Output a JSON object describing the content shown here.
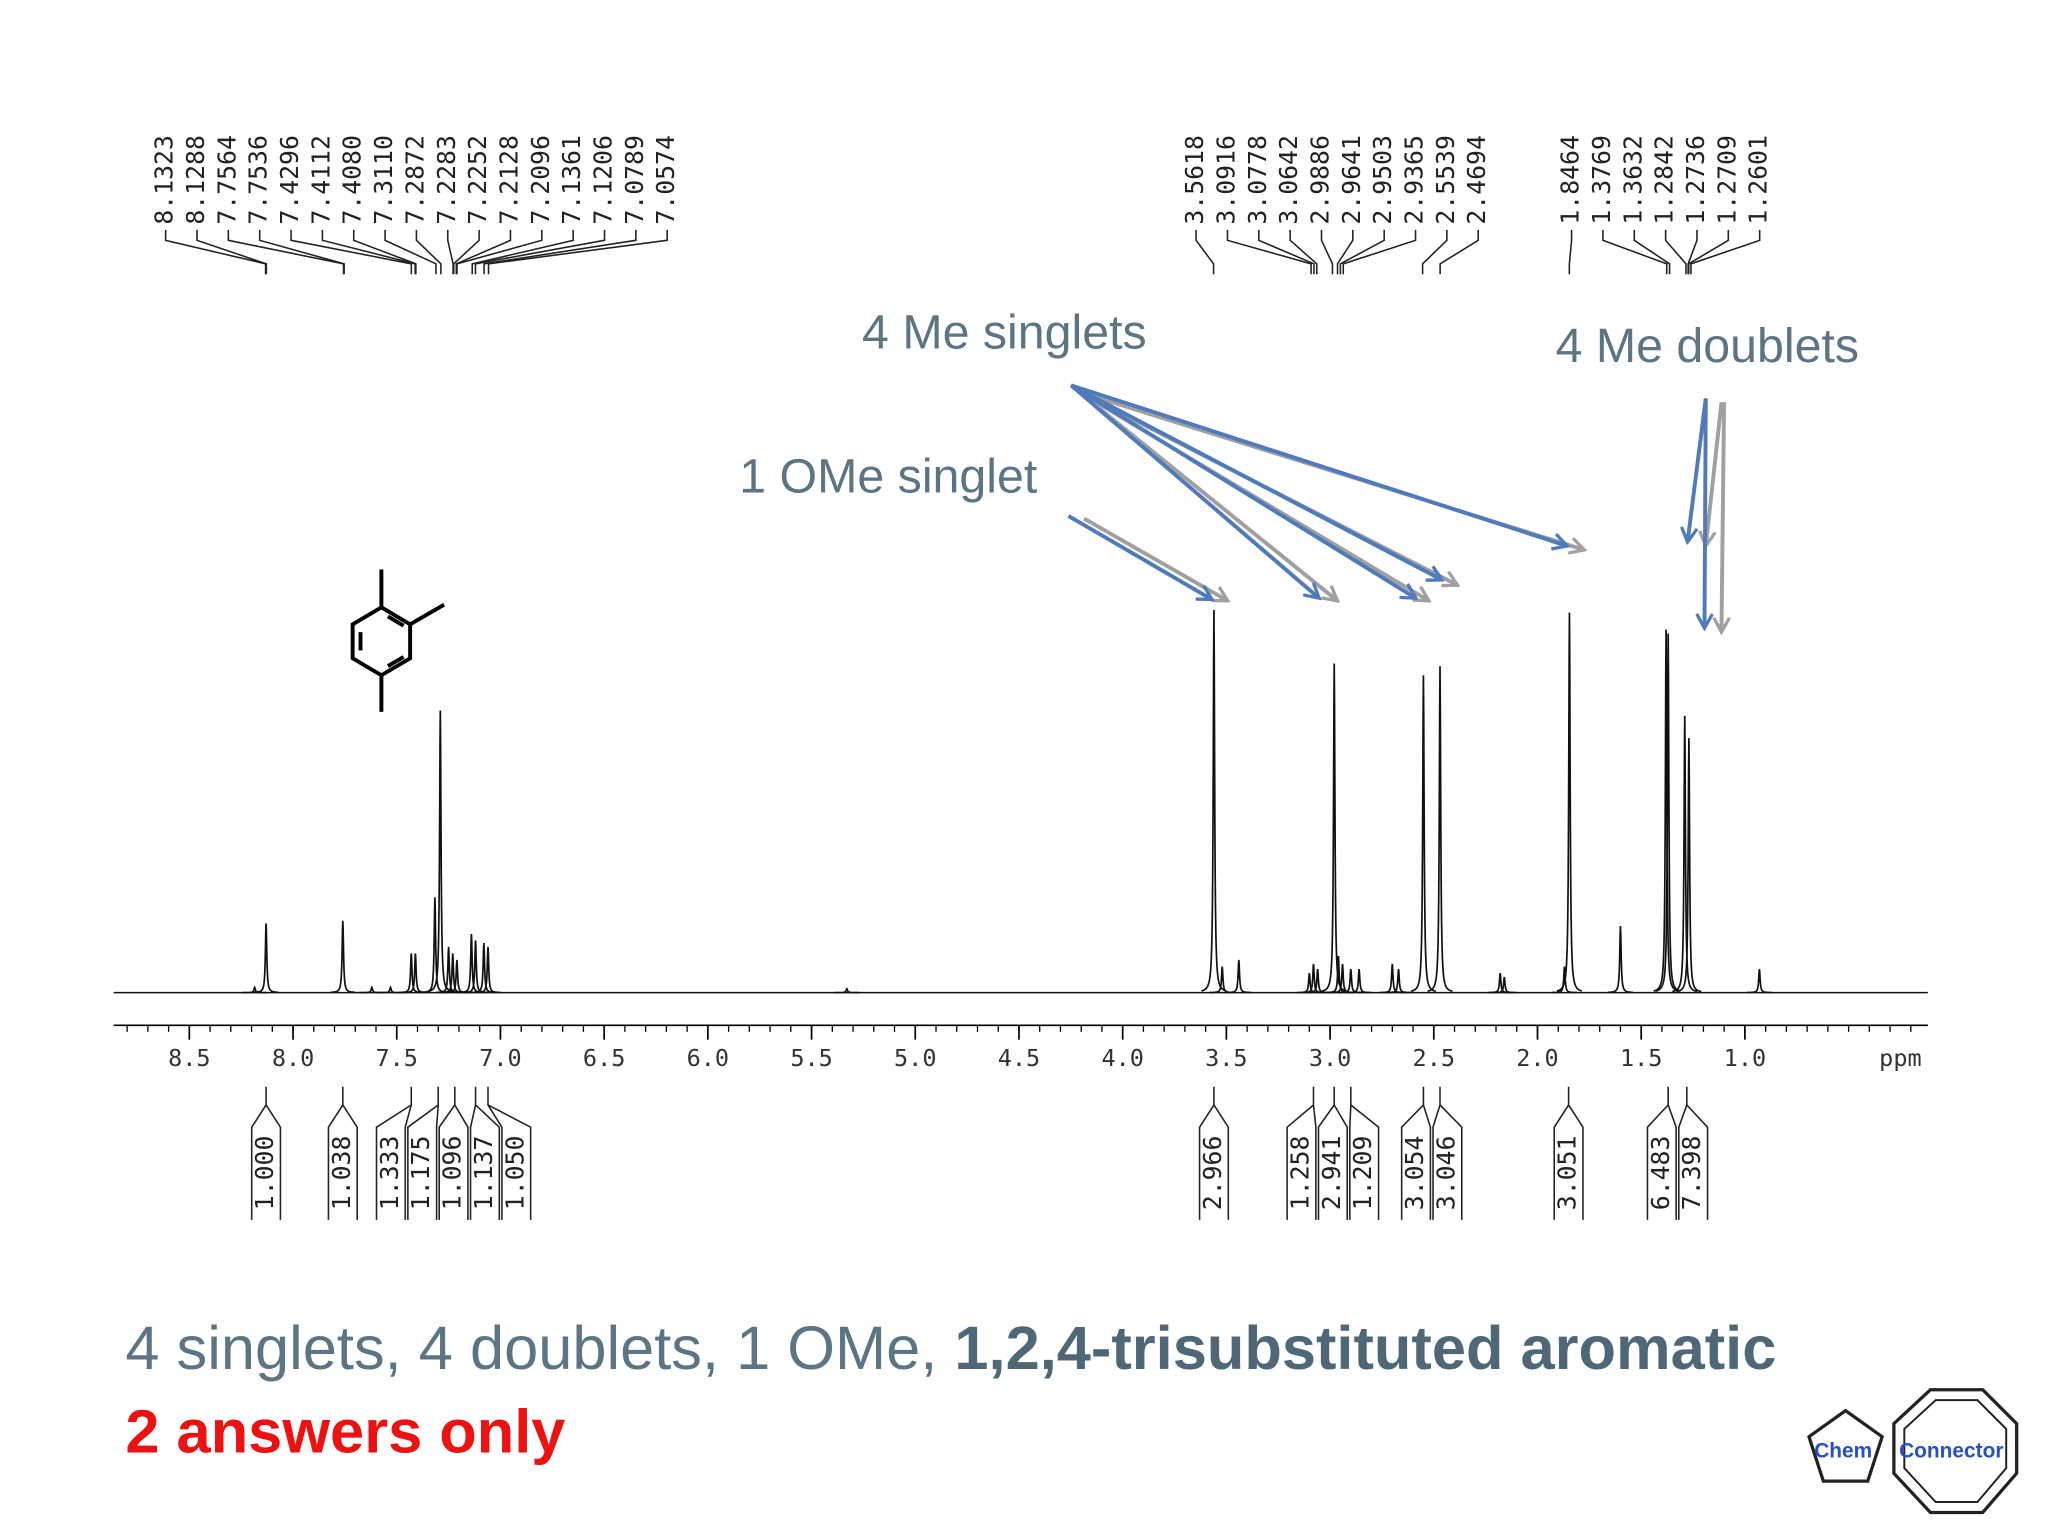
{
  "chart_data": {
    "type": "nmr",
    "xlim": [
      8.865,
      0.118
    ],
    "xticks": [
      8.5,
      {
        "value": 8,
        "label": "8.0"
      },
      7.5,
      {
        "value": 7,
        "label": "7.0"
      },
      6.5,
      {
        "value": 6,
        "label": "6.0"
      },
      5.5,
      {
        "value": 5,
        "label": "5.0"
      },
      4.5,
      {
        "value": 4,
        "label": "4.0"
      },
      3.5,
      {
        "value": 3,
        "label": "3.0"
      },
      2.5,
      {
        "value": 2,
        "label": "2.0"
      },
      1.5,
      {
        "value": 1,
        "label": "1.0"
      }
    ],
    "x_unit_label": "ppm",
    "peak_labels": [
      8.1323,
      8.1288,
      7.7564,
      7.7536,
      7.4296,
      7.4112,
      {
        "value": 7.408,
        "label": "7.4080"
      },
      {
        "value": 7.311,
        "label": "7.3110"
      },
      7.2872,
      7.2283,
      7.2252,
      7.2128,
      7.2096,
      7.1361,
      7.1206,
      7.0789,
      7.0574,
      3.5618,
      3.0916,
      3.0778,
      3.0642,
      2.9886,
      2.9641,
      2.9503,
      2.9365,
      2.5539,
      2.4694,
      1.8464,
      1.3769,
      1.3632,
      1.2842,
      1.2736,
      1.2709,
      1.2601
    ],
    "integrals": [
      {
        "ppm": 8.13,
        "label": "1.000"
      },
      {
        "ppm": 7.76,
        "label": "1.038"
      },
      {
        "ppm": 7.43,
        "label": "1.333"
      },
      {
        "ppm": 7.3,
        "label": "1.175"
      },
      {
        "ppm": 7.22,
        "label": "1.096"
      },
      {
        "ppm": 7.12,
        "label": "1.137"
      },
      {
        "ppm": 7.06,
        "label": "1.050"
      },
      {
        "ppm": 3.56,
        "label": "2.966"
      },
      {
        "ppm": 3.08,
        "label": "1.258"
      },
      {
        "ppm": 2.98,
        "label": "2.941"
      },
      {
        "ppm": 2.9,
        "label": "1.209"
      },
      {
        "ppm": 2.55,
        "label": "3.054"
      },
      {
        "ppm": 2.47,
        "label": "3.046"
      },
      {
        "ppm": 1.85,
        "label": "3.051"
      },
      {
        "ppm": 1.37,
        "label": "6.483"
      },
      {
        "ppm": 1.28,
        "label": "7.398"
      }
    ],
    "spectrum": {
      "ppm": [
        8.185,
        8.13,
        7.76,
        7.62,
        7.53,
        7.43,
        7.41,
        7.316,
        7.29,
        7.25,
        7.23,
        7.21,
        7.14,
        7.12,
        7.08,
        7.06,
        5.33,
        3.56,
        3.52,
        3.44,
        3.1,
        3.08,
        3.06,
        2.98,
        2.96,
        2.94,
        2.9,
        2.86,
        2.7,
        2.67,
        2.55,
        2.47,
        2.18,
        2.16,
        1.87,
        1.846,
        1.6,
        1.38,
        1.37,
        1.29,
        1.27,
        0.93
      ],
      "intensity": [
        4,
        53,
        55,
        4,
        4,
        30,
        30,
        73,
        216,
        35,
        30,
        25,
        45,
        40,
        38,
        35,
        3,
        293,
        20,
        25,
        15,
        22,
        18,
        252,
        28,
        22,
        18,
        18,
        22,
        18,
        243,
        250,
        15,
        12,
        20,
        291,
        51,
        278,
        275,
        212,
        195,
        18
      ]
    }
  },
  "annotations": [
    "4 Me singlets",
    "1 OMe singlet",
    "4 Me doublets"
  ],
  "footer": {
    "line1_plain": "4 singlets, 4 doublets, 1 OMe, ",
    "line1_bold": "1,2,4-trisubstituted aromatic",
    "line2": "2 answers only"
  },
  "logo": {
    "left": "Chem",
    "right": "Connector"
  }
}
